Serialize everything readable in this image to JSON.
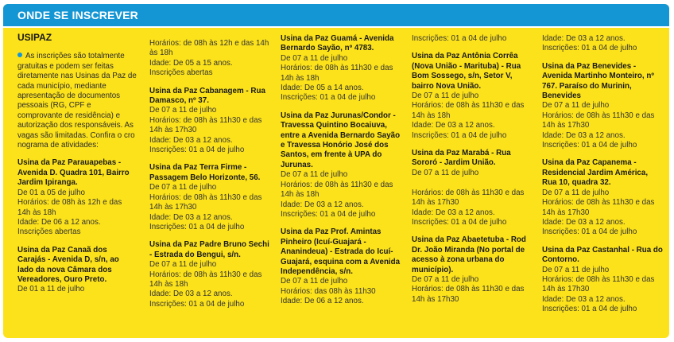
{
  "header": {
    "title": "ONDE SE INSCREVER"
  },
  "section": {
    "title": "USIPAZ"
  },
  "intro": "As inscrições são totalmente gratuitas e podem ser feitas diretamente nas Usinas da Paz de cada município, mediante apresentação de documentos pessoais (RG, CPF e comprovante de residência) e autorização dos responsáveis. As vagas são limitadas. Confira o cro nograma de atividades:",
  "columns": [
    [
      {
        "title": "Usina da Paz Parauapebas - Avenida D. Quadra 101, Bairro Jardim Ipiranga.",
        "lines": [
          "De 01 a 05 de julho",
          "Horários: de 08h às 12h e das 14h às 18h",
          "Idade: De 06 a 12 anos.",
          "Inscrições abertas"
        ]
      },
      {
        "title": "Usina da Paz Canaã dos Carajás - Avenida D, s/n, ao lado da nova Câmara dos Vereadores, Ouro Preto.",
        "lines": [
          "De 01 a 11 de julho"
        ]
      }
    ],
    [
      {
        "title": "",
        "lines": [
          "Horários: de 08h às 12h e das 14h às 18h",
          "Idade: De 05 a 15 anos.",
          "Inscrições abertas"
        ]
      },
      {
        "title": "Usina da Paz Cabanagem - Rua Damasco, nº 37.",
        "lines": [
          "De 07 a 11 de julho",
          "Horários: de 08h às 11h30 e das 14h às 17h30",
          "Idade: De 03 a 12 anos.",
          "Inscrições: 01 a 04 de julho"
        ]
      },
      {
        "title": "Usina da Paz Terra Firme - Passagem Belo Horizonte, 56.",
        "lines": [
          "De 07 a 11 de julho",
          "Horários: de 08h às 11h30 e das 14h às 17h30",
          "Idade: De 03 a 12 anos.",
          "Inscrições: 01 a 04 de julho"
        ]
      },
      {
        "title": "Usina da Paz Padre Bruno Sechi - Estrada do Bengui, s/n.",
        "lines": [
          "De 07 a 11 de julho",
          "Horários: de 08h às 11h30 e das 14h às 18h",
          "Idade: De 03 a 12 anos.",
          "Inscrições: 01 a 04 de julho"
        ]
      }
    ],
    [
      {
        "title": "Usina da Paz Guamá - Avenida Bernardo Sayão, nº 4783.",
        "lines": [
          "De 07 a 11 de julho",
          "Horários: de 08h às 11h30 e das 14h às 18h",
          "Idade: De 05 a 14 anos.",
          "Inscrições: 01 a 04 de julho"
        ]
      },
      {
        "title": "Usina da Paz Jurunas/Condor - Travessa Quintino Bocaiuva, entre a Avenida Bernardo Sayão e Travessa Honório José dos Santos, em frente à UPA do Jurunas.",
        "lines": [
          "De 07 a 11 de julho",
          "Horários: de 08h às 11h30 e das 14h às 18h",
          "Idade: De 03 a 12 anos.",
          "Inscrições: 01 a 04 de julho"
        ]
      },
      {
        "title": "Usina da Paz Prof. Amintas Pinheiro (Icuí-Guajará - Ananindeua) - Estrada do Icuí-Guajará, esquina com a Avenida Independência, s/n.",
        "lines": [
          "De 07 a 11 de julho",
          "Horários: das 08h às 11h30",
          "Idade: De 06 a 12 anos."
        ]
      }
    ],
    [
      {
        "title": "",
        "lines": [
          "Inscrições: 01 a 04 de julho"
        ]
      },
      {
        "title": "Usina da Paz Antônia Corrêa (Nova União - Marituba) - Rua Bom Sossego, s/n, Setor V, bairro Nova União.",
        "lines": [
          "De 07 a 11 de julho",
          "Horários: de 08h às 11h30 e das 14h às 18h",
          "Idade: De 03 a 12 anos.",
          "Inscrições: 01 a 04 de julho"
        ]
      },
      {
        "title": "Usina da Paz Marabá - Rua Sororó - Jardim União.",
        "lines": [
          "De 07 a 11 de julho",
          "",
          "Horários: de 08h às 11h30 e das 14h às 17h30",
          "Idade: De 03 a 12 anos.",
          "Inscrições: 01 a 04 de julho"
        ]
      },
      {
        "title": "Usina da Paz Abaetetuba - Rod Dr. João Miranda (No portal de acesso à zona urbana do município).",
        "lines": [
          "De 07 a 11 de julho",
          "Horários: de 08h às 11h30 e das 14h às 17h30"
        ]
      }
    ],
    [
      {
        "title": "",
        "lines": [
          "Idade: De 03 a 12 anos.",
          "Inscrições: 01 a 04 de julho"
        ]
      },
      {
        "title": "Usina da Paz Benevides - Avenida Martinho Monteiro, nº 767. Paraíso do Murinin, Benevides",
        "lines": [
          "De 07 a 11 de julho",
          "Horários: de 08h às 11h30 e das 14h às 17h30",
          "Idade: De 03 a 12 anos.",
          "Inscrições: 01 a 04 de julho"
        ]
      },
      {
        "title": "Usina da Paz Capanema - Residencial Jardim América, Rua 10, quadra 32.",
        "lines": [
          "De 07 a 11 de julho",
          "Horários: de 08h às 11h30 e das 14h às 17h30",
          "Idade: De 03 a 12 anos.",
          "Inscrições: 01 a 04 de julho"
        ]
      },
      {
        "title": "Usina da Paz Castanhal - Rua do Contorno.",
        "lines": [
          "De 07 a 11 de julho",
          "Horários: de 08h às 11h30 e das 14h às 17h30",
          "Idade: De 03 a 12 anos.",
          "Inscrições: 01 a 04 de julho"
        ]
      }
    ]
  ]
}
